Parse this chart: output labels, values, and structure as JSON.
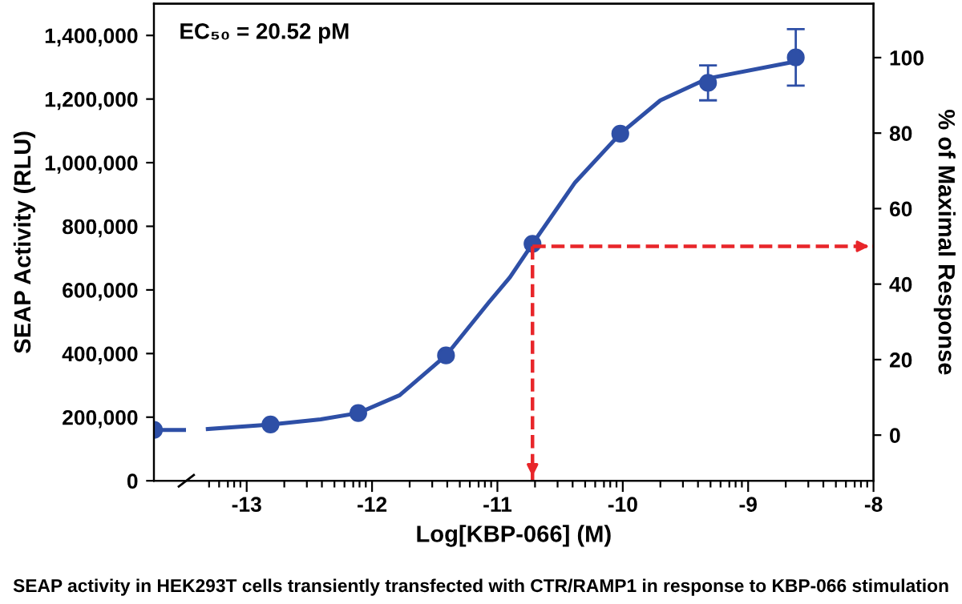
{
  "chart_data": {
    "type": "scatter",
    "xlabel": "Log[KBP-066] (M)",
    "ylabel": "SEAP Activity (RLU)",
    "y2label": "% of Maximal Response",
    "annotations": [
      {
        "text": "EC₅₀ = 20.52 pM"
      },
      {
        "text": "SEAP activity in HEK293T cells transiently transfected with CTR/RAMP1 in response to KBP-066 stimulation"
      }
    ],
    "x": [
      -13.74,
      -12.81,
      -12.11,
      -11.41,
      -10.72,
      -10.02,
      -9.32,
      -8.62
    ],
    "series": [
      {
        "color": "#2e4fa6",
        "marker": "circle",
        "values": [
          160000,
          177000,
          213000,
          394000,
          745000,
          1091000,
          1251000,
          1331000
        ],
        "errors": [
          null,
          null,
          null,
          null,
          null,
          null,
          55000,
          89000
        ]
      },
      {
        "type": "line",
        "marker": "none",
        "color": "#2e4fa6",
        "x": [
          -13.74,
          -13.5,
          -13.4,
          -13.31,
          -12.81,
          -12.41,
          -12.11,
          -11.78,
          -11.41,
          -11.07,
          -10.9,
          -10.72,
          -10.38,
          -10.02,
          -9.7,
          -9.32,
          -8.62
        ],
        "values": [
          160000,
          160000,
          null,
          163000,
          177000,
          193000,
          213000,
          269000,
          394000,
          560000,
          640000,
          745000,
          938000,
          1091000,
          1196000,
          1265000,
          1318000
        ]
      }
    ],
    "xlim": [
      -13.74,
      -8
    ],
    "xticks": [
      -13,
      -12,
      -11,
      -10,
      -9,
      -8,
      {
        "value": -13.3,
        "label": null
      },
      {
        "value": -13.22,
        "label": null
      },
      {
        "value": -13.15,
        "label": null
      },
      {
        "value": -13.1,
        "label": null
      },
      {
        "value": -13.05,
        "label": null
      },
      {
        "value": -12.7,
        "label": null
      },
      {
        "value": -12.52,
        "label": null
      },
      {
        "value": -12.4,
        "label": null
      },
      {
        "value": -12.3,
        "label": null
      },
      {
        "value": -12.22,
        "label": null
      },
      {
        "value": -12.15,
        "label": null
      },
      {
        "value": -12.1,
        "label": null
      },
      {
        "value": -12.05,
        "label": null
      },
      {
        "value": -11.7,
        "label": null
      },
      {
        "value": -11.52,
        "label": null
      },
      {
        "value": -11.4,
        "label": null
      },
      {
        "value": -11.3,
        "label": null
      },
      {
        "value": -11.22,
        "label": null
      },
      {
        "value": -11.15,
        "label": null
      },
      {
        "value": -11.1,
        "label": null
      },
      {
        "value": -11.05,
        "label": null
      },
      {
        "value": -10.7,
        "label": null
      },
      {
        "value": -10.52,
        "label": null
      },
      {
        "value": -10.4,
        "label": null
      },
      {
        "value": -10.3,
        "label": null
      },
      {
        "value": -10.22,
        "label": null
      },
      {
        "value": -10.15,
        "label": null
      },
      {
        "value": -10.1,
        "label": null
      },
      {
        "value": -10.05,
        "label": null
      },
      {
        "value": -9.7,
        "label": null
      },
      {
        "value": -9.52,
        "label": null
      },
      {
        "value": -9.4,
        "label": null
      },
      {
        "value": -9.3,
        "label": null
      },
      {
        "value": -9.22,
        "label": null
      },
      {
        "value": -9.15,
        "label": null
      },
      {
        "value": -9.1,
        "label": null
      },
      {
        "value": -9.05,
        "label": null
      },
      {
        "value": -8.7,
        "label": null
      },
      {
        "value": -8.52,
        "label": null
      },
      {
        "value": -8.4,
        "label": null
      },
      {
        "value": -8.3,
        "label": null
      },
      {
        "value": -8.22,
        "label": null
      },
      {
        "value": -8.15,
        "label": null
      },
      {
        "value": -8.1,
        "label": null
      },
      {
        "value": -8.05,
        "label": null
      }
    ],
    "ylim": [
      0,
      1500000
    ],
    "yticks": [
      {
        "value": 0,
        "label": "0"
      },
      {
        "value": 200000,
        "label": "200,000"
      },
      {
        "value": 400000,
        "label": "400,000"
      },
      {
        "value": 600000,
        "label": "600,000"
      },
      {
        "value": 800000,
        "label": "800,000"
      },
      {
        "value": 1000000,
        "label": "1,000,000"
      },
      {
        "value": 1200000,
        "label": "1,200,000"
      },
      {
        "value": 1400000,
        "label": "1,400,000"
      }
    ],
    "y2lim": [
      -12.1,
      114.3
    ],
    "y2ticks": [
      0,
      20,
      40,
      60,
      80,
      100
    ],
    "ref_lines": [
      {
        "axis": "x",
        "value": -10.72,
        "color": "#e8262a",
        "line_style": "dashed"
      },
      {
        "axis": "y2",
        "value": 50,
        "color": "#e8262a",
        "line_style": "dashed"
      }
    ],
    "grid": false,
    "legend": false
  }
}
